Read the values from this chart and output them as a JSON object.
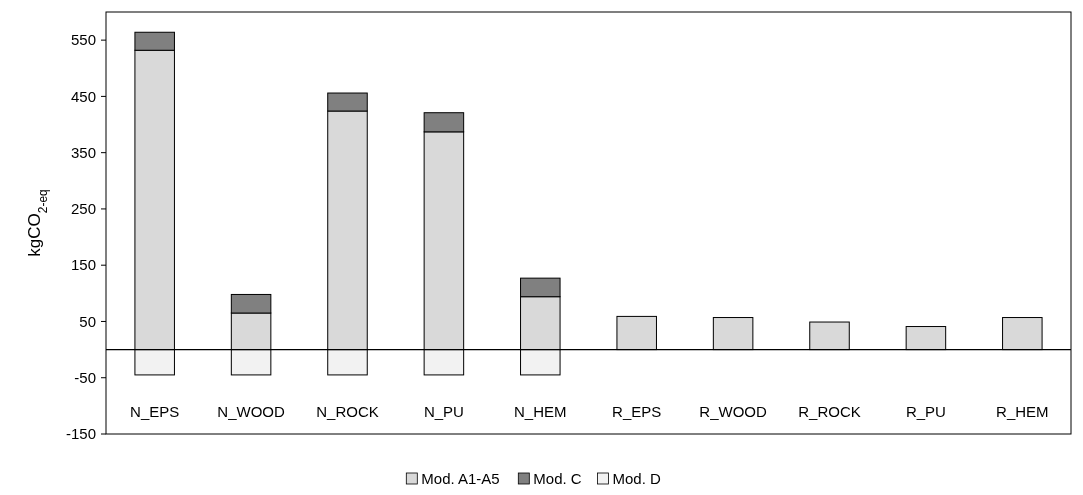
{
  "chart_data": {
    "type": "bar",
    "stacked": true,
    "ylabel": "kgCO$_{2-eq}$",
    "categories": [
      "N_EPS",
      "N_WOOD",
      "N_ROCK",
      "N_PU",
      "N_HEM",
      "R_EPS",
      "R_WOOD",
      "R_ROCK",
      "R_PU",
      "R_HEM"
    ],
    "series": [
      {
        "name": "Mod. A1-A5",
        "color": "#d9d9d9",
        "values": [
          532,
          65,
          424,
          387,
          94,
          59,
          57,
          49,
          41,
          57
        ]
      },
      {
        "name": "Mod. C",
        "color": "#808080",
        "values": [
          32,
          33,
          32,
          34,
          33,
          null,
          null,
          null,
          null,
          null
        ]
      },
      {
        "name": "Mod. D",
        "color": "#f2f2f2",
        "values": [
          -45,
          -45,
          -45,
          -45,
          -45,
          null,
          null,
          null,
          null,
          null
        ]
      }
    ],
    "ylim": [
      -150,
      600
    ],
    "yticks": [
      -150,
      -50,
      50,
      150,
      250,
      350,
      450,
      550
    ],
    "ref_lines": [
      {
        "axis": "y",
        "value": 0
      }
    ],
    "grid": false,
    "legend": "bottom"
  }
}
